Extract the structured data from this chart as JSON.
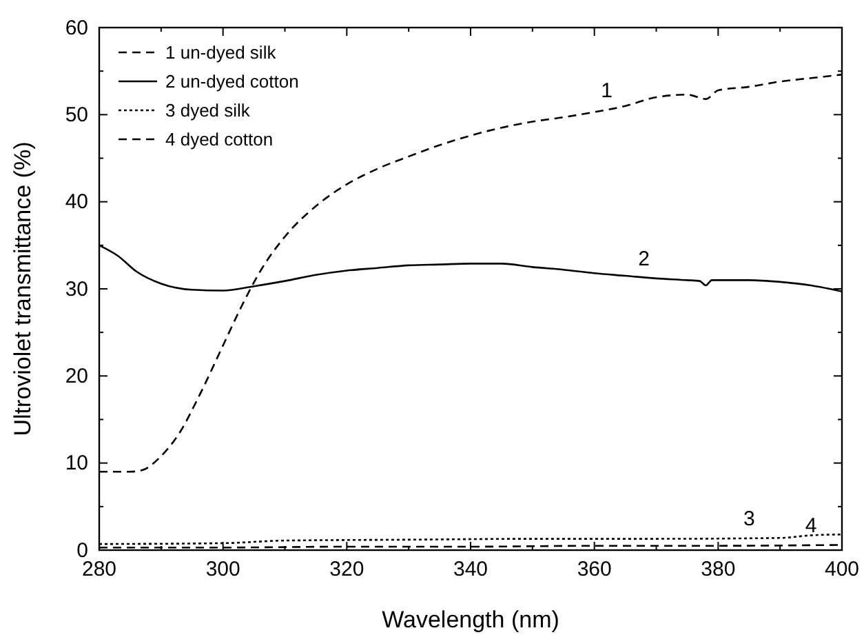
{
  "chart_data": {
    "type": "line",
    "xlabel": "Wavelength (nm)",
    "ylabel": "Ultroviolet transmittance (%)",
    "xlim": [
      280,
      400
    ],
    "ylim": [
      0,
      60
    ],
    "xticks": [
      280,
      300,
      320,
      340,
      360,
      380,
      400
    ],
    "yticks": [
      0,
      10,
      20,
      30,
      40,
      50,
      60
    ],
    "legend": "top left",
    "grid": false,
    "marker": "none",
    "series": [
      {
        "name": "1 un-dyed silk",
        "color": "#000000",
        "line_style": "dashed",
        "x": [
          280,
          285,
          287,
          290,
          293,
          296,
          300,
          303,
          306,
          310,
          315,
          320,
          325,
          330,
          335,
          340,
          345,
          350,
          355,
          360,
          365,
          370,
          375,
          378,
          380,
          385,
          390,
          395,
          400
        ],
        "values": [
          9,
          9,
          9.2,
          10.8,
          13.5,
          17.5,
          23.5,
          28,
          32,
          36,
          39.5,
          42,
          43.8,
          45.2,
          46.5,
          47.6,
          48.5,
          49.2,
          49.7,
          50.3,
          51,
          52,
          52.3,
          51.8,
          52.8,
          53.2,
          53.8,
          54.2,
          54.6
        ]
      },
      {
        "name": "2 un-dyed cotton",
        "color": "#000000",
        "line_style": "solid",
        "x": [
          280,
          283,
          286,
          290,
          295,
          300,
          305,
          310,
          315,
          320,
          325,
          330,
          335,
          340,
          345,
          350,
          355,
          360,
          365,
          370,
          375,
          377,
          378,
          379,
          380,
          385,
          390,
          395,
          400
        ],
        "values": [
          35,
          33.8,
          32,
          30.6,
          29.9,
          29.8,
          30.3,
          30.9,
          31.6,
          32.1,
          32.4,
          32.7,
          32.8,
          32.9,
          32.9,
          32.5,
          32.2,
          31.8,
          31.5,
          31.2,
          31,
          30.9,
          30.4,
          31,
          31,
          31,
          30.8,
          30.4,
          29.7
        ]
      },
      {
        "name": "3 dyed silk",
        "color": "#000000",
        "line_style": "dotted",
        "x": [
          280,
          300,
          310,
          330,
          350,
          370,
          390,
          395,
          400
        ],
        "values": [
          0.7,
          0.8,
          1.1,
          1.2,
          1.3,
          1.3,
          1.4,
          1.7,
          1.8
        ]
      },
      {
        "name": "4 dyed cotton",
        "color": "#000000",
        "line_style": "dashed",
        "x": [
          280,
          300,
          320,
          340,
          360,
          380,
          400
        ],
        "values": [
          0.3,
          0.3,
          0.4,
          0.4,
          0.5,
          0.5,
          0.6
        ]
      }
    ],
    "annotations": [
      {
        "text": "1",
        "x": 362,
        "y": 50.6
      },
      {
        "text": "2",
        "x": 368,
        "y": 31.3
      },
      {
        "text": "3",
        "x": 385,
        "y": 1.4
      },
      {
        "text": "4",
        "x": 395,
        "y": 0.6
      }
    ]
  }
}
